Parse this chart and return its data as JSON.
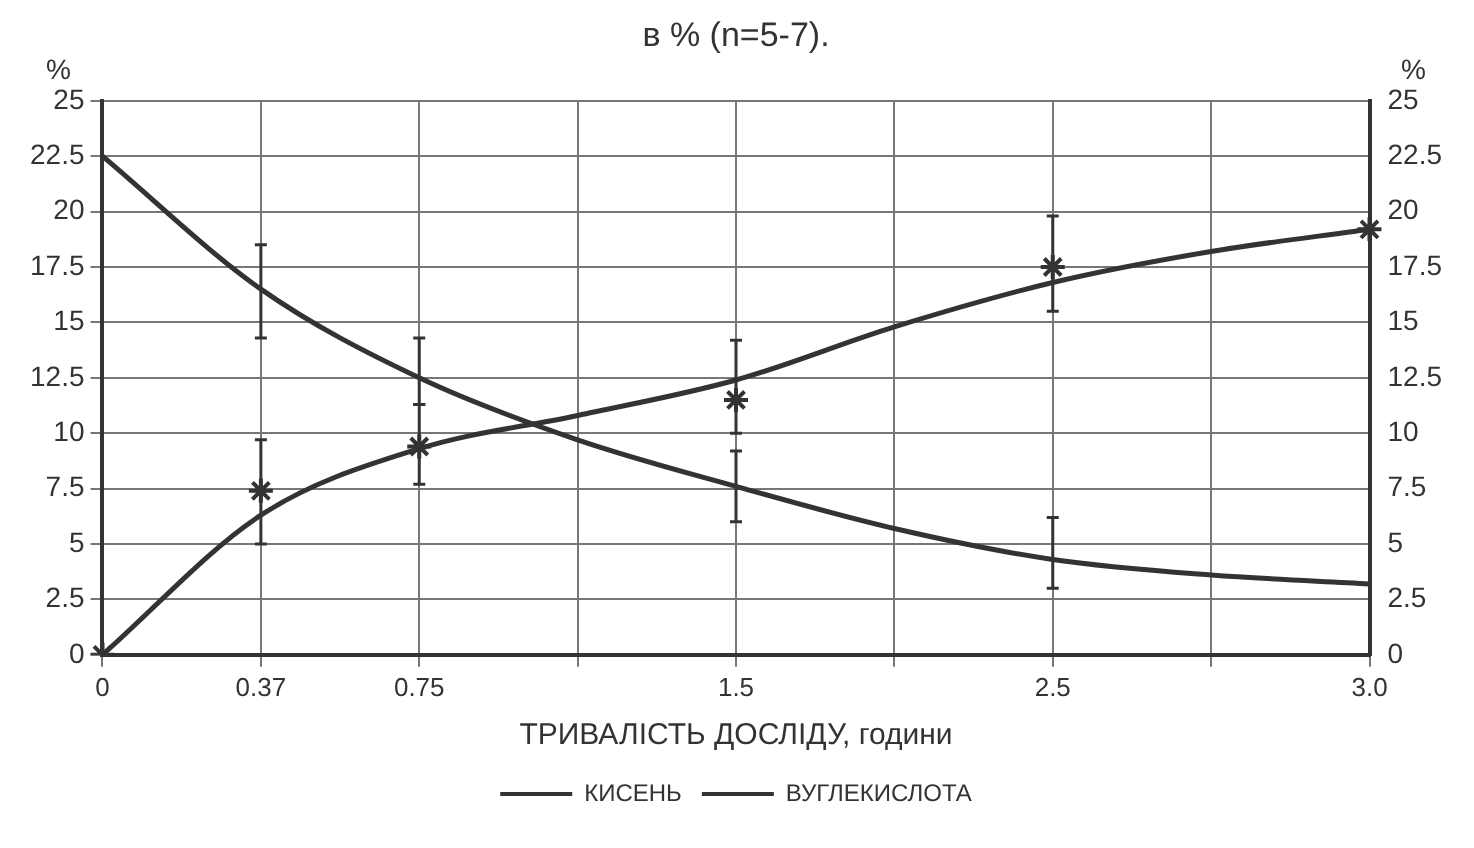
{
  "chart_data": {
    "type": "line",
    "title": "в % (n=5-7).",
    "xlabel": "ТРИВАЛІСТЬ ДОСЛІДУ, години",
    "ylabel": "%",
    "y2label": "%",
    "categories": [
      "0",
      "0.37",
      "0.75",
      null,
      "1.5",
      null,
      "2.5",
      null,
      "3.0"
    ],
    "series": [
      {
        "name": "КИСЕНЬ",
        "color": "#333333",
        "marker": "none",
        "values": [
          22.5,
          16.5,
          12.5,
          9.7,
          7.6,
          5.7,
          4.3,
          3.6,
          3.2
        ],
        "errors": [
          null,
          [
            14.3,
            18.5
          ],
          [
            11.3,
            14.3
          ],
          null,
          [
            6,
            9.2
          ],
          null,
          [
            3,
            6.2
          ],
          null,
          null
        ]
      },
      {
        "name": "ВУГЛЕКИСЛОТА",
        "color": "#333333",
        "marker": "none",
        "values": [
          0,
          6.3,
          9.3,
          10.8,
          12.4,
          14.8,
          16.8,
          18.2,
          19.2
        ]
      },
      {
        "type": "scatter",
        "color": "#333333",
        "marker": "cross",
        "values": [
          0,
          7.4,
          9.4,
          null,
          11.5,
          null,
          17.5,
          null,
          19.2
        ],
        "errors": [
          null,
          [
            5,
            9.7
          ],
          [
            7.7,
            11.3
          ],
          null,
          [
            10,
            14.2
          ],
          null,
          [
            15.5,
            19.8
          ],
          null,
          null
        ]
      }
    ],
    "ylim": [
      0,
      25
    ],
    "yticks": [
      0,
      2.5,
      5,
      7.5,
      10,
      12.5,
      15,
      17.5,
      20,
      22.5,
      25
    ],
    "y2lim": [
      0,
      25
    ],
    "y2ticks": [
      0,
      2.5,
      5,
      7.5,
      10,
      12.5,
      15,
      17.5,
      20,
      22.5,
      25
    ],
    "grid": true,
    "legend": "bottom"
  }
}
